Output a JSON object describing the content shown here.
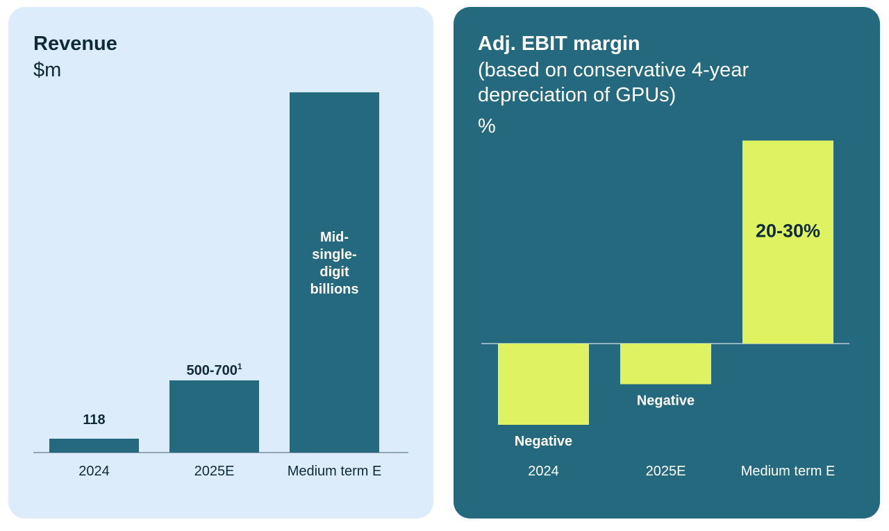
{
  "chart_data": [
    {
      "type": "bar",
      "title": "Revenue",
      "unit": "$m",
      "categories": [
        "2024",
        "2025E",
        "Medium term E"
      ],
      "values": [
        118,
        600,
        null
      ],
      "labels": [
        "118",
        "500-700",
        "Mid-single-digit billions"
      ],
      "label_lines": [
        [
          "118"
        ],
        [
          "500-700"
        ],
        [
          "Mid-",
          "single-",
          "digit",
          "billions"
        ]
      ],
      "footnote_marker": "1",
      "colors": {
        "bar": "#24697e",
        "background": "#dcecfb",
        "text": "#0f2b38"
      }
    },
    {
      "type": "bar",
      "title": "Adj. EBIT margin",
      "subtitle_lines": [
        "(based on conservative 4-year",
        "depreciation of GPUs)"
      ],
      "unit": "%",
      "categories": [
        "2024",
        "2025E",
        "Medium term E"
      ],
      "values": [
        -10,
        -5,
        25
      ],
      "labels": [
        "Negative",
        "Negative",
        "20-30%"
      ],
      "colors": {
        "bar": "#dff262",
        "background": "#24697e",
        "text": "#ffffff",
        "inside_label": "#0f2b38"
      }
    }
  ]
}
